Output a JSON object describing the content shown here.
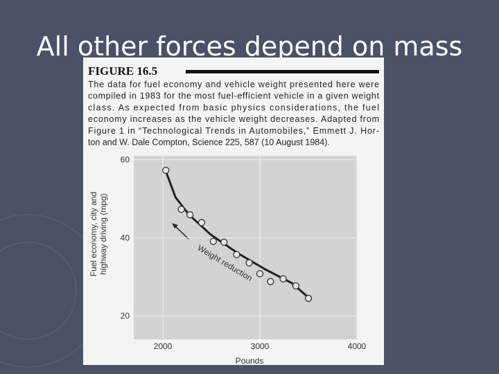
{
  "slide_title": "All other forces depend on mass",
  "figure": {
    "label": "FIGURE 16.5",
    "caption_lines": [
      "The data for fuel economy and vehicle weight presented here were",
      "compiled in 1983 for the most fuel-efficient vehicle in a given weight",
      "class. As expected from basic physics considerations, the fuel",
      "economy increases as the vehicle weight decreases. Adapted from",
      "Figure 1 in “Technological Trends in Automobiles,” Emmett J. Hor-",
      "ton and W. Dale Compton, Science 225, 587 (10 August 1984)."
    ]
  },
  "chart_data": {
    "type": "scatter",
    "xlabel": "Pounds",
    "ylabel": [
      "Fuel economy, city and",
      "highway driving (mpg)"
    ],
    "annotation": "Weight reduction",
    "x": [
      2030,
      2190,
      2280,
      2400,
      2520,
      2630,
      2760,
      2890,
      3000,
      3110,
      3240,
      3370,
      3500
    ],
    "y": [
      57.3,
      47.3,
      45.9,
      43.9,
      39.1,
      38.9,
      35.7,
      33.6,
      30.8,
      28.8,
      29.5,
      27.7,
      24.5
    ],
    "curve": {
      "x": [
        2030,
        2130,
        2270,
        2490,
        2770,
        3050,
        3330,
        3510
      ],
      "y": [
        57.1,
        50.4,
        45.9,
        40.9,
        36.1,
        32.0,
        28.4,
        24.5
      ]
    },
    "xlim": [
      1700,
      4000
    ],
    "ylim": [
      14,
      61
    ],
    "xticks": [
      2000,
      3000,
      4000
    ],
    "yticks": [
      20,
      40,
      60
    ],
    "grid": true
  }
}
